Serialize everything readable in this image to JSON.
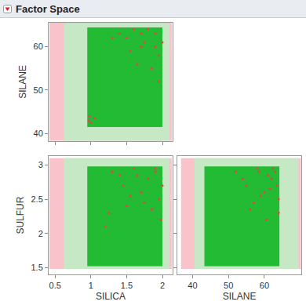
{
  "chart_data": {
    "type": "scatter_matrix",
    "title": "Factor Space",
    "panels": [
      {
        "y_label": "SILANE",
        "xlim": [
          0.41,
          2.14
        ],
        "ylim": [
          38.3,
          65.5
        ],
        "xticks": [
          0.5,
          1,
          1.5,
          2
        ],
        "yticks": [
          40,
          50,
          60
        ],
        "tick_labels": "y",
        "regions": [
          {
            "color": "#f8c3cb",
            "x": [
              0.42,
              2.13
            ],
            "y": [
              38.3,
              65.5
            ]
          },
          {
            "color": "#c6e8c4",
            "x": [
              0.62,
              2.1
            ],
            "y": [
              38.3,
              65.3
            ]
          },
          {
            "color": "#22bb33",
            "x": [
              0.95,
              2.0
            ],
            "y": [
              41.5,
              64.4
            ]
          }
        ],
        "points": {
          "color": "#e8434b",
          "x": [
            0.97,
            1.0,
            0.98,
            1.05,
            1.5,
            1.6,
            1.7,
            1.8,
            1.9,
            1.75,
            1.95,
            1.65,
            2.0,
            1.85,
            1.4,
            1.55,
            1.9,
            1.7,
            1.3,
            1.95
          ],
          "y": [
            43,
            42.5,
            44,
            43.5,
            62,
            64,
            60,
            64,
            63,
            61,
            58,
            56,
            61,
            55,
            63,
            59,
            60,
            63,
            62,
            52
          ]
        }
      },
      {
        "x_label": "SILICA",
        "y_label": "SULFUR",
        "xlim": [
          0.41,
          2.14
        ],
        "ylim": [
          1.4,
          3.13
        ],
        "xticks": [
          0.5,
          1,
          1.5,
          2
        ],
        "yticks": [
          1.5,
          2,
          2.5,
          3
        ],
        "tick_labels": true,
        "regions": [
          {
            "color": "#f8c3cb",
            "x": [
              0.42,
              2.13
            ],
            "y": [
              1.48,
              3.1
            ]
          },
          {
            "color": "#c6e8c4",
            "x": [
              0.62,
              2.1
            ],
            "y": [
              1.48,
              3.1
            ]
          },
          {
            "color": "#22bb33",
            "x": [
              0.95,
              2.0
            ],
            "y": [
              1.52,
              2.98
            ]
          }
        ],
        "points": {
          "color": "#e8434b",
          "x": [
            1.3,
            1.45,
            1.6,
            1.7,
            1.8,
            1.9,
            1.95,
            1.75,
            1.65,
            1.55,
            2.0,
            1.85,
            1.2,
            1.25,
            1.9,
            1.5,
            1.4,
            1.98
          ],
          "y": [
            2.9,
            2.7,
            2.95,
            2.6,
            2.8,
            2.9,
            2.5,
            2.45,
            2.85,
            2.55,
            2.7,
            2.35,
            2.1,
            2.3,
            2.95,
            2.4,
            2.85,
            2.2
          ]
        }
      },
      {
        "x_label": "SILANE",
        "xlim": [
          35.8,
          70.3
        ],
        "ylim": [
          1.4,
          3.13
        ],
        "xticks": [
          40,
          50,
          60
        ],
        "yticks": [
          1.5,
          2,
          2.5,
          3
        ],
        "tick_labels": "x",
        "regions": [
          {
            "color": "#f8c3cb",
            "x": [
              36.8,
              70.2
            ],
            "y": [
              1.48,
              3.1
            ]
          },
          {
            "color": "#c6e8c4",
            "x": [
              40.5,
              69.5
            ],
            "y": [
              1.48,
              3.1
            ]
          },
          {
            "color": "#22bb33",
            "x": [
              43.3,
              64.2
            ],
            "y": [
              1.52,
              2.98
            ]
          }
        ],
        "points": {
          "color": "#e8434b",
          "x": [
            52,
            55,
            58,
            60,
            62,
            63,
            64,
            57,
            61,
            59,
            63.5,
            56,
            60.5,
            62.5,
            54,
            64,
            58.5,
            61.5
          ],
          "y": [
            2.9,
            2.7,
            2.95,
            2.6,
            2.8,
            2.9,
            2.5,
            2.45,
            2.85,
            2.55,
            2.7,
            2.35,
            2.2,
            2.95,
            2.8,
            2.3,
            2.9,
            2.65
          ]
        }
      }
    ]
  }
}
